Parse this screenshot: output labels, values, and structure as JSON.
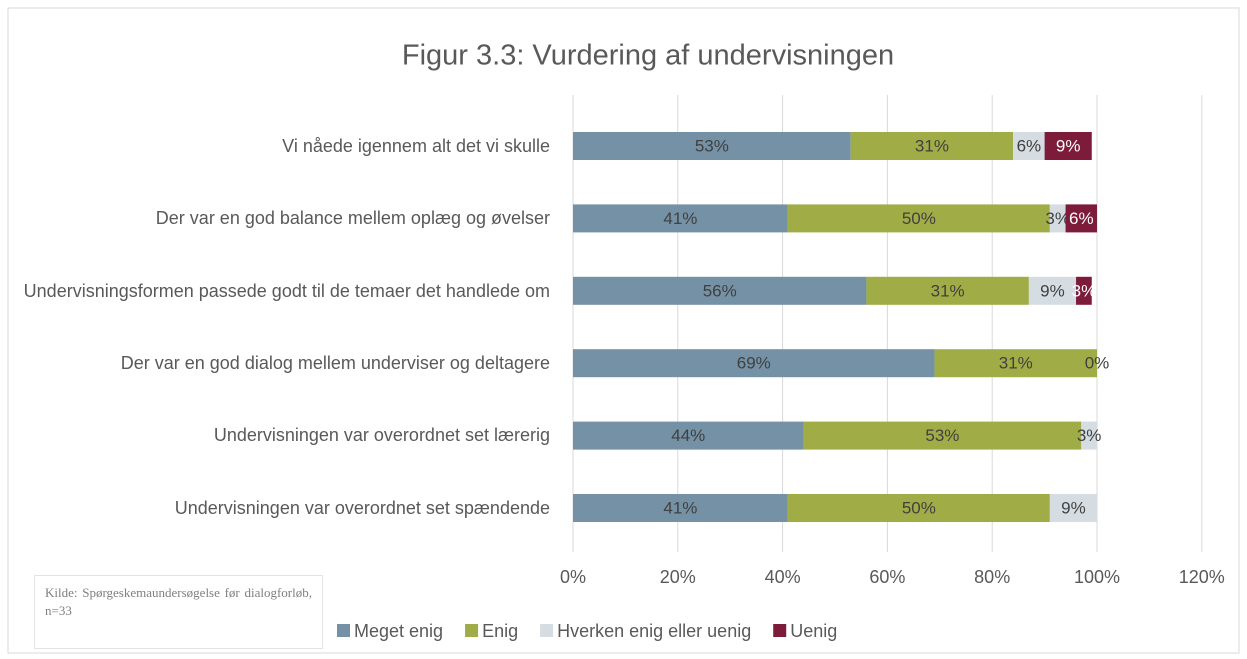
{
  "chart_data": {
    "type": "stacked_barh",
    "title": "Figur 3.3: Vurdering af undervisningen",
    "source": "Kilde: Spørgeskemaundersøgelse før dialogforløb, n=33",
    "categories": [
      "Vi nåede igennem alt det vi skulle",
      "Der var en god balance mellem oplæg og øvelser",
      "Undervisningsformen passede godt til de temaer det handlede om",
      "Der var en god dialog mellem underviser og deltagere",
      "Undervisningen var overordnet set lærerig",
      "Undervisningen var overordnet set spændende"
    ],
    "series": [
      {
        "name": "Meget enig",
        "color": "#7591a5",
        "label_color": "#404040",
        "values": [
          53,
          41,
          56,
          69,
          44,
          41
        ],
        "value_labels": [
          "53%",
          "41%",
          "56%",
          "69%",
          "44%",
          "41%"
        ]
      },
      {
        "name": "Enig",
        "color": "#a0ad46",
        "label_color": "#404040",
        "values": [
          31,
          50,
          31,
          31,
          53,
          50
        ],
        "value_labels": [
          "31%",
          "50%",
          "31%",
          "31%",
          "53%",
          "50%"
        ]
      },
      {
        "name": "Hverken enig eller uenig",
        "color": "#d5dde3",
        "label_color": "#404040",
        "values": [
          6,
          3,
          9,
          0,
          3,
          9
        ],
        "value_labels": [
          "6%",
          "3%",
          "9%",
          "0%",
          "3%",
          "9%"
        ]
      },
      {
        "name": "Uenig",
        "color": "#7c1b3a",
        "label_color": "#ffffff",
        "values": [
          9,
          6,
          3,
          null,
          null,
          null
        ],
        "value_labels": [
          "9%",
          "6%",
          "3%",
          null,
          null,
          null
        ]
      }
    ],
    "xlim": [
      0,
      120
    ],
    "xticks": [
      {
        "value": 0,
        "label": "0%"
      },
      {
        "value": 20,
        "label": "20%"
      },
      {
        "value": 40,
        "label": "40%"
      },
      {
        "value": 60,
        "label": "60%"
      },
      {
        "value": 80,
        "label": "80%"
      },
      {
        "value": 100,
        "label": "100%"
      },
      {
        "value": 120,
        "label": "120%"
      }
    ],
    "grid": true,
    "legend": "bottom"
  }
}
